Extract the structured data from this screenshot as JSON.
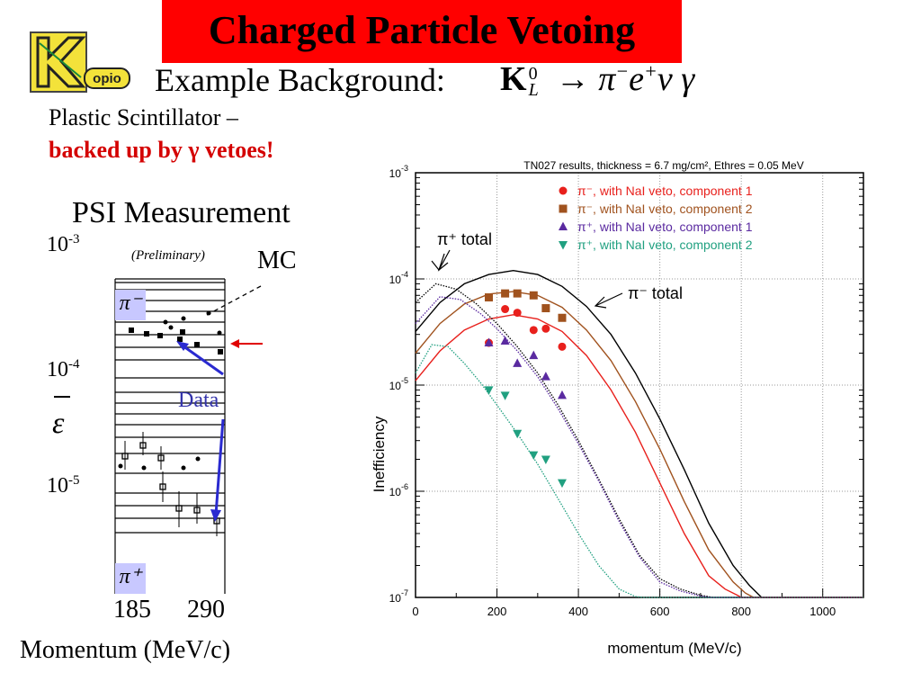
{
  "slide": {
    "title": "Charged Particle Vetoing",
    "logo_text": "opio",
    "example_label": "Example Background:",
    "subtitle_line1": "Plastic Scintillator –",
    "subtitle_line2": "backed up by γ vetoes!",
    "psi_title": "PSI Measurement",
    "preliminary": "(Preliminary)",
    "mc_label": "MC",
    "data_label": "Data",
    "momentum_label": "Momentum (MeV/c)",
    "ytick_1e3": "10",
    "ytick_1e3_exp": "-3",
    "ytick_1e4": "10",
    "ytick_1e4_exp": "-4",
    "ytick_1e5": "10",
    "ytick_1e5_exp": "-5",
    "epsilon_symbol": "ε",
    "xtick_185": "185",
    "xtick_290": "290",
    "pi_minus_box": "π⁻",
    "pi_plus_box": "π⁺"
  },
  "chart_data": {
    "type": "scatter",
    "title": "TN027 results, thickness = 6.7 mg/cm², Ethres = 0.05 MeV",
    "xlabel": "momentum (MeV/c)",
    "ylabel": "Inefficiency",
    "xlim": [
      0,
      1100
    ],
    "ylim": [
      1e-07,
      0.001
    ],
    "yscale": "log",
    "grid": true,
    "legend_position": "top-right",
    "xticks": [
      "0",
      "200",
      "400",
      "600",
      "800",
      "1000"
    ],
    "yticks": [
      {
        "base": "10",
        "exp": "-7",
        "value": 1e-07
      },
      {
        "base": "10",
        "exp": "-6",
        "value": 1e-06
      },
      {
        "base": "10",
        "exp": "-5",
        "value": 1e-05
      },
      {
        "base": "10",
        "exp": "-4",
        "value": 0.0001
      },
      {
        "base": "10",
        "exp": "-3",
        "value": 0.001
      }
    ],
    "annotations": [
      {
        "text": "π⁺ total"
      },
      {
        "text": "π⁻ total"
      }
    ],
    "series": [
      {
        "name": "π⁻, with NaI veto, component 1",
        "color": "#e8201c",
        "marker": "circle",
        "x": [
          180,
          220,
          250,
          290,
          320,
          360
        ],
        "y": [
          2.5e-05,
          5.2e-05,
          4.8e-05,
          3.3e-05,
          3.4e-05,
          2.3e-05
        ]
      },
      {
        "name": "π⁻, with NaI veto, component 2",
        "color": "#a0521e",
        "marker": "square",
        "x": [
          180,
          220,
          250,
          290,
          320,
          360
        ],
        "y": [
          6.7e-05,
          7.3e-05,
          7.3e-05,
          7e-05,
          5.3e-05,
          4.3e-05
        ]
      },
      {
        "name": "π⁺, with NaI veto, component 1",
        "color": "#5a2aa0",
        "marker": "triangle-up",
        "x": [
          180,
          220,
          250,
          290,
          320,
          360
        ],
        "y": [
          2.5e-05,
          2.6e-05,
          1.6e-05,
          1.9e-05,
          1.2e-05,
          8e-06
        ]
      },
      {
        "name": "π⁺, with NaI veto, component 2",
        "color": "#20a080",
        "marker": "triangle-down",
        "x": [
          180,
          220,
          250,
          290,
          320,
          360
        ],
        "y": [
          9e-06,
          8e-06,
          3.5e-06,
          2.2e-06,
          2e-06,
          1.2e-06
        ]
      }
    ],
    "curves": [
      {
        "label": "π⁻ total",
        "color": "#000000",
        "style": "solid",
        "x": [
          0,
          60,
          120,
          180,
          240,
          300,
          360,
          420,
          480,
          540,
          600,
          660,
          720,
          780,
          820,
          850,
          1100
        ],
        "y": [
          3.2e-05,
          6e-05,
          9e-05,
          0.00011,
          0.00012,
          0.00011,
          8.5e-05,
          5.5e-05,
          3e-05,
          1.3e-05,
          4.8e-06,
          1.6e-06,
          5e-07,
          2e-07,
          1.3e-07,
          1e-07,
          1e-07
        ]
      },
      {
        "label": "π⁻ component 2 fit",
        "color": "#a0521e",
        "style": "solid",
        "x": [
          0,
          60,
          120,
          180,
          240,
          300,
          360,
          420,
          480,
          540,
          600,
          660,
          720,
          780,
          810,
          830,
          1100
        ],
        "y": [
          2e-05,
          3.8e-05,
          5.8e-05,
          7.2e-05,
          7.6e-05,
          7e-05,
          5.4e-05,
          3.3e-05,
          1.7e-05,
          7e-06,
          2.5e-06,
          8e-07,
          2.8e-07,
          1.4e-07,
          1.1e-07,
          1e-07,
          1e-07
        ]
      },
      {
        "label": "π⁻ component 1 fit",
        "color": "#e8201c",
        "style": "solid",
        "x": [
          0,
          60,
          120,
          180,
          240,
          300,
          360,
          420,
          480,
          540,
          600,
          660,
          720,
          760,
          790,
          800,
          1100
        ],
        "y": [
          1.1e-05,
          2.1e-05,
          3.3e-05,
          4.2e-05,
          4.6e-05,
          4.2e-05,
          3.2e-05,
          1.9e-05,
          9e-06,
          3.6e-06,
          1.2e-06,
          4e-07,
          1.6e-07,
          1.2e-07,
          1.05e-07,
          1e-07,
          1e-07
        ]
      },
      {
        "label": "π⁺ total",
        "color": "#000000",
        "style": "dotted",
        "x": [
          0,
          50,
          100,
          150,
          200,
          250,
          300,
          350,
          400,
          450,
          500,
          550,
          600,
          650,
          700,
          730,
          1100
        ],
        "y": [
          6e-05,
          9e-05,
          8e-05,
          5.8e-05,
          3.8e-05,
          2.3e-05,
          1.3e-05,
          6.5e-06,
          3e-06,
          1.3e-06,
          5.5e-07,
          2.5e-07,
          1.5e-07,
          1.2e-07,
          1.05e-07,
          1e-07,
          1e-07
        ]
      },
      {
        "label": "π⁺ component 1 fit",
        "color": "#5a2aa0",
        "style": "dotted",
        "x": [
          0,
          60,
          110,
          160,
          200,
          250,
          300,
          350,
          400,
          450,
          500,
          550,
          600,
          650,
          700,
          725,
          1100
        ],
        "y": [
          3.8e-05,
          6.8e-05,
          6.4e-05,
          4.7e-05,
          3.4e-05,
          2.1e-05,
          1.2e-05,
          6e-06,
          2.8e-06,
          1.25e-06,
          5.2e-07,
          2.4e-07,
          1.4e-07,
          1.15e-07,
          1.03e-07,
          1e-07,
          1e-07
        ]
      },
      {
        "label": "π⁺ component 2 fit",
        "color": "#20a080",
        "style": "dotted",
        "x": [
          0,
          40,
          80,
          120,
          160,
          200,
          250,
          300,
          350,
          400,
          450,
          500,
          540,
          560,
          1100
        ],
        "y": [
          1.3e-05,
          2.4e-05,
          2.3e-05,
          1.6e-05,
          1.05e-05,
          6.5e-06,
          3.5e-06,
          1.8e-06,
          8.5e-07,
          4e-07,
          2e-07,
          1.2e-07,
          1.02e-07,
          1e-07,
          1e-07
        ]
      }
    ]
  }
}
